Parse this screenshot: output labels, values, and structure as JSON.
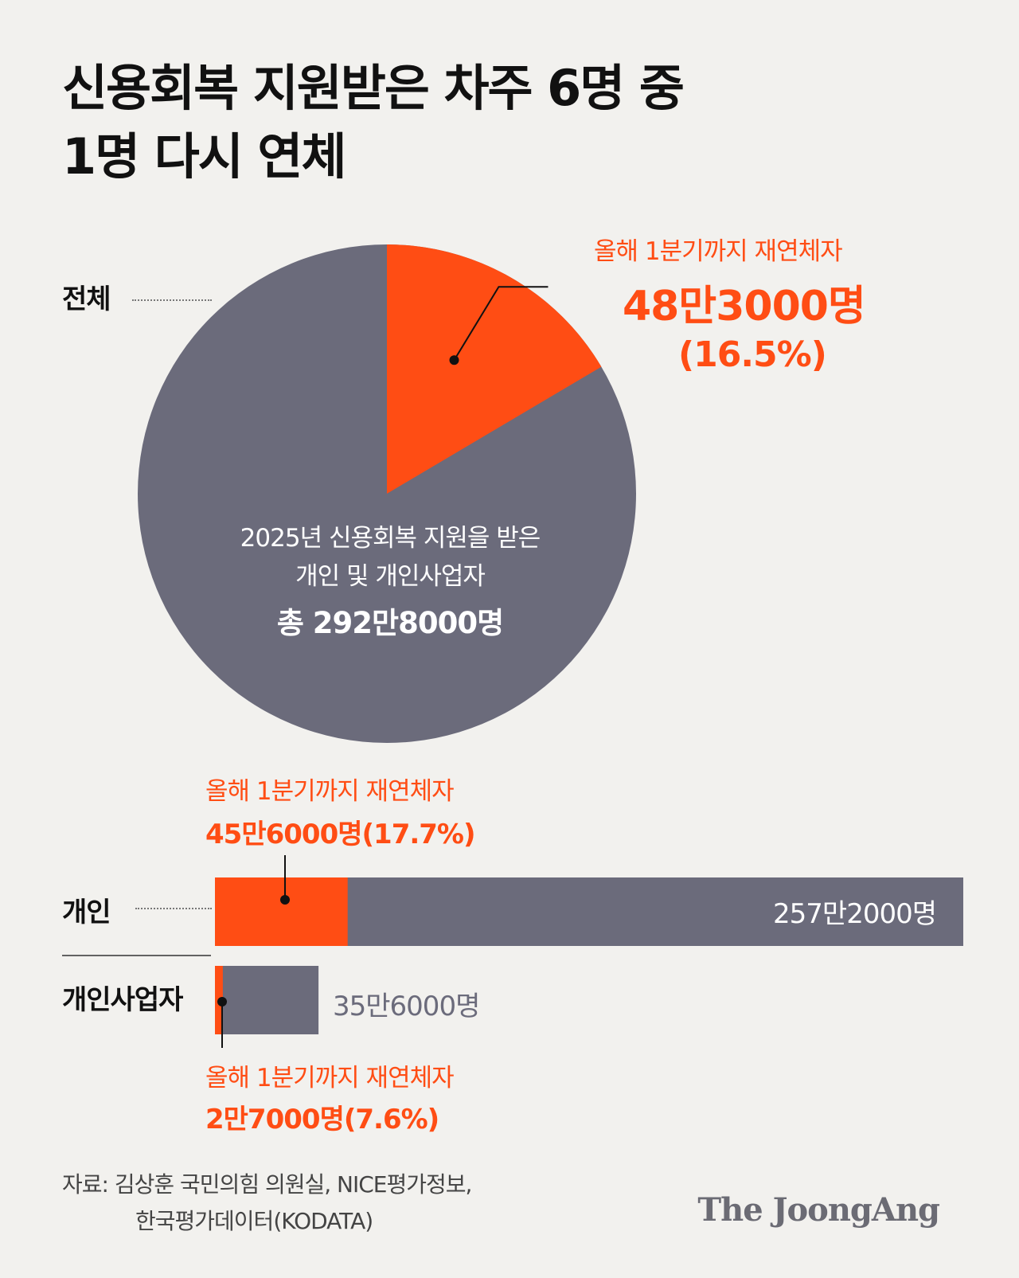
{
  "title": {
    "line1": "신용회복 지원받은 차주 6명 중",
    "line2": "1명 다시 연체"
  },
  "labels": {
    "total": "전체",
    "individual": "개인",
    "self_employed": "개인사업자"
  },
  "pie": {
    "line1": "2025년 신용회복 지원을 받은",
    "line2": "개인 및 개인사업자",
    "line3": "총 292만8000명"
  },
  "callouts": {
    "total": {
      "label": "올해 1분기까지 재연체자",
      "value": "48만3000명",
      "percent": "(16.5%)"
    },
    "individual": {
      "label": "올해 1분기까지 재연체자",
      "value": "45만6000명(17.7%)"
    },
    "self_employed": {
      "label": "올해 1분기까지 재연체자",
      "value": "2만7000명(7.6%)"
    }
  },
  "bars": {
    "individual_total": "257만2000명",
    "self_employed_total": "35만6000명"
  },
  "source": {
    "line1": "자료: 김상훈 국민의힘 의원실, NICE평가정보,",
    "line2": "한국평가데이터(KODATA)"
  },
  "logo": "The JoongAng",
  "colors": {
    "background": "#f2f1ee",
    "base": "#6b6b7b",
    "highlight": "#ff4d14"
  },
  "chart_data": [
    {
      "type": "pie",
      "categories": [
        "올해 1분기까지 재연체자",
        "2025년 신용회복 지원을 받은 개인 및 개인사업자"
      ],
      "values": [
        483000,
        2445000
      ],
      "total": 2928000,
      "percent": 16.5
    },
    {
      "type": "bar",
      "categories": [
        "개인",
        "개인사업자"
      ],
      "series": [
        {
          "values": [
            2572000,
            356000
          ]
        },
        {
          "name": "올해 1분기까지 재연체자",
          "values": [
            456000,
            27000
          ]
        }
      ],
      "percent": [
        17.7,
        7.6
      ]
    }
  ]
}
